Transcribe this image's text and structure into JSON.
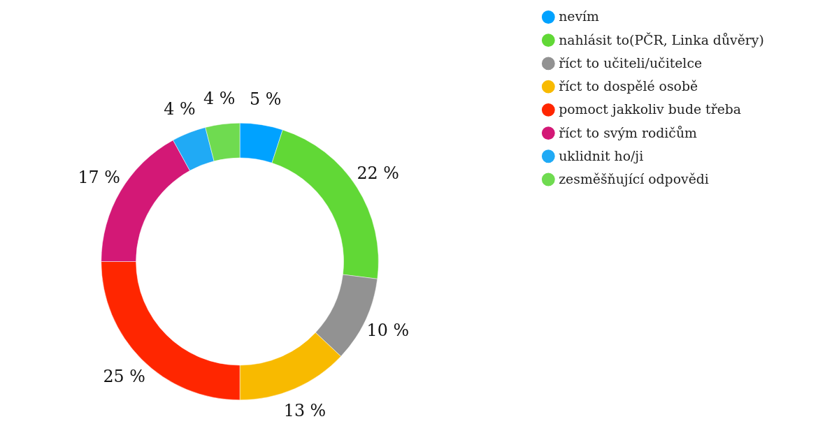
{
  "chart_data": {
    "type": "donut",
    "categories": [
      "nevím",
      "nahlásit to(PČR, Linka důvěry)",
      "říct to učiteli/učitelce",
      "říct to dospělé osobě",
      "pomoct jakkoliv bude třeba",
      "říct to svým rodičům",
      "uklidnit ho/ji",
      "zesměšňující odpovědi"
    ],
    "values": [
      5,
      22,
      10,
      13,
      25,
      17,
      4,
      4
    ],
    "value_labels": [
      "5 %",
      "22 %",
      "10 %",
      "13 %",
      "25 %",
      "17 %",
      "4 %",
      "4 %"
    ],
    "colors": [
      "#00a2ff",
      "#61d836",
      "#929292",
      "#f8ba00",
      "#ff2600",
      "#d31876",
      "#20aaf5",
      "#6fdb50"
    ],
    "legend": "top right"
  }
}
